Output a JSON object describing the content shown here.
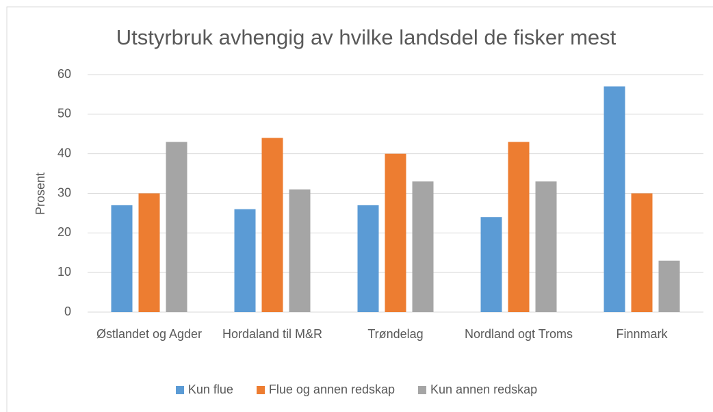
{
  "chart_data": {
    "type": "bar",
    "title": "Utstyrbruk avhengig av hvilke landsdel de fisker mest",
    "y_label": "Prosent",
    "categories": [
      "Østlandet og Agder",
      "Hordaland til M&R",
      "Trøndelag",
      "Nordland ogt Troms",
      "Finnmark"
    ],
    "series": [
      {
        "name": "Kun flue",
        "color": "#5b9bd5",
        "values": [
          27,
          26,
          27,
          24,
          57
        ]
      },
      {
        "name": "Flue og annen redskap",
        "color": "#ed7d31",
        "values": [
          30,
          44,
          40,
          43,
          30
        ]
      },
      {
        "name": "Kun annen redskap",
        "color": "#a5a5a5",
        "values": [
          43,
          31,
          33,
          33,
          13
        ]
      }
    ],
    "ylim": [
      0,
      60
    ],
    "yticks": [
      0,
      10,
      20,
      30,
      40,
      50,
      60
    ],
    "grid": true,
    "legend": "bottom"
  }
}
